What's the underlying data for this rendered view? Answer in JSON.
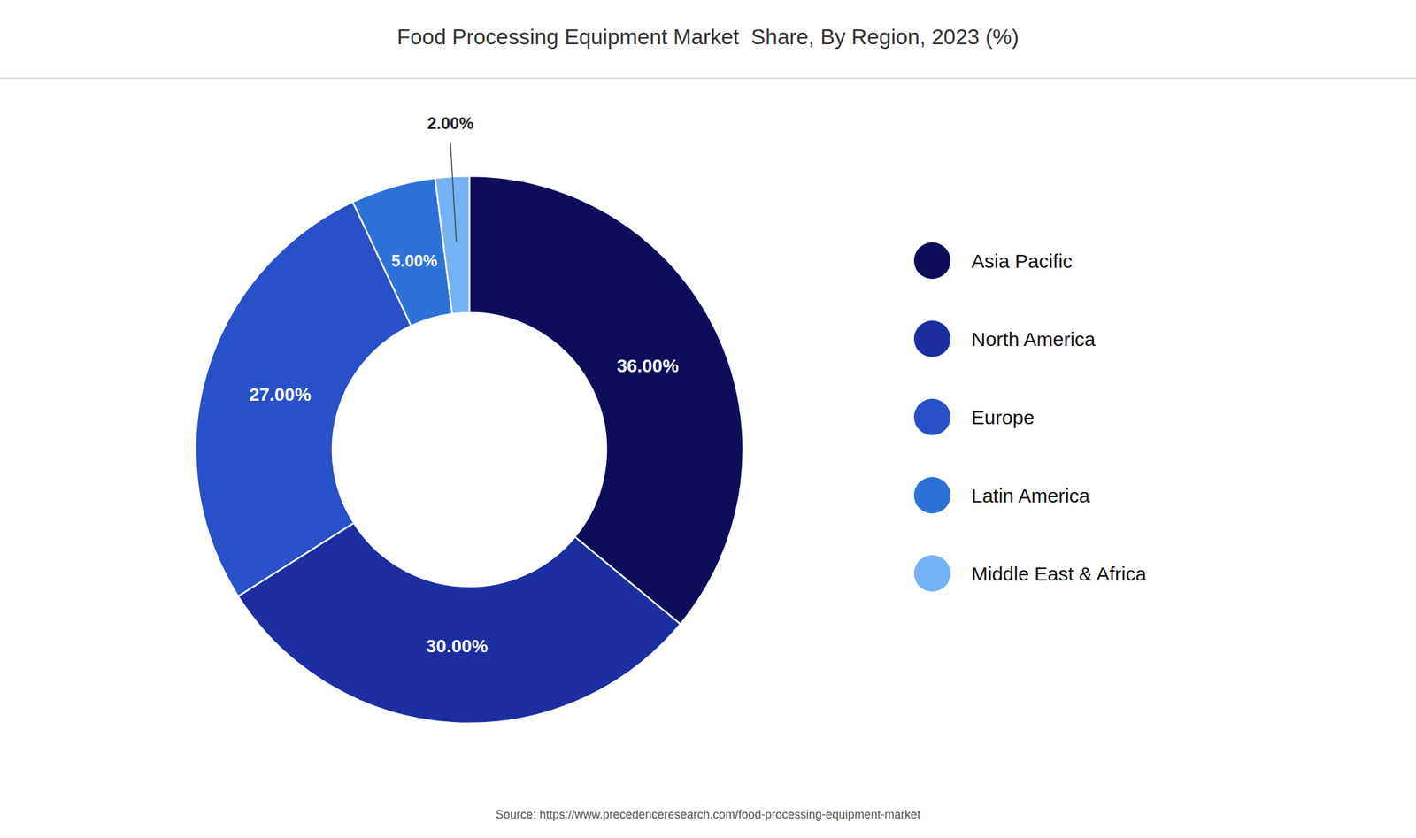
{
  "chart_data": {
    "type": "pie",
    "title": "Food Processing Equipment Market  Share, By Region, 2023 (%)",
    "categories": [
      "Asia Pacific",
      "North America",
      "Europe",
      "Latin America",
      "Middle East & Africa"
    ],
    "values": [
      36.0,
      30.0,
      27.0,
      5.0,
      2.0
    ],
    "value_labels": [
      "36.00%",
      "30.00%",
      "27.00%",
      "5.00%",
      "2.00%"
    ],
    "colors": [
      "#0d0d5c",
      "#1c2ea0",
      "#2850c8",
      "#2d72d9",
      "#74b3f5"
    ],
    "data_labels": true,
    "legend": "right",
    "annotations": [
      "Source: https://www.precedenceresearch.com/food-processing-equipment-market"
    ]
  }
}
